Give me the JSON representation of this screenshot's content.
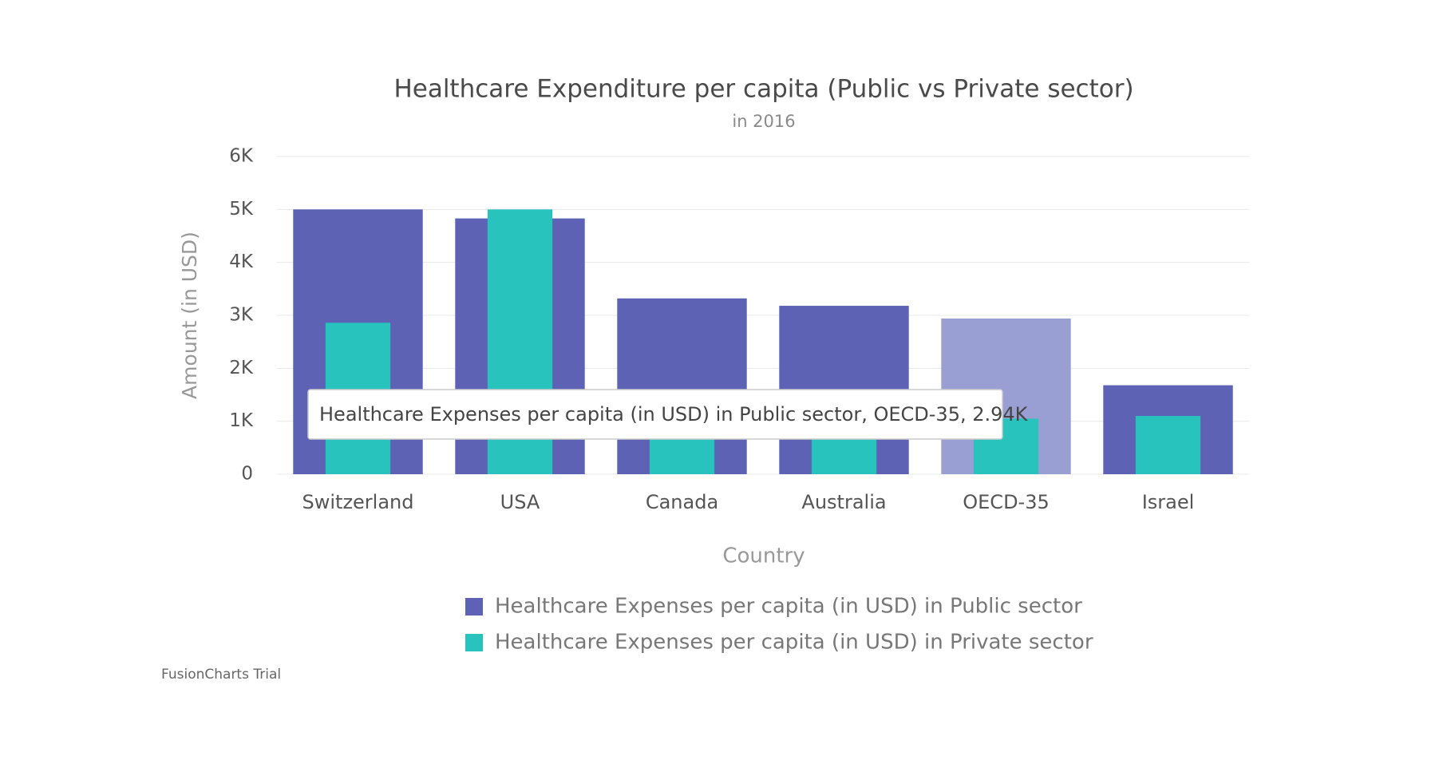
{
  "chart_data": {
    "type": "bar",
    "title": "Healthcare Expenditure per capita (Public vs Private sector)",
    "subtitle": "in 2016",
    "x_label": "Country",
    "y_label": "Amount (in USD)",
    "categories": [
      "Switzerland",
      "USA",
      "Canada",
      "Australia",
      "OECD-35",
      "Israel"
    ],
    "series": [
      {
        "name": "Healthcare Expenses per capita (in USD) in Public sector",
        "color": "#5d62b5",
        "values": [
          5000,
          4830,
          3320,
          3180,
          2940,
          1680
        ]
      },
      {
        "name": "Healthcare Expenses per capita (in USD) in Private sector",
        "color": "#29c3be",
        "values": [
          2860,
          5000,
          1430,
          1100,
          1050,
          1100
        ]
      }
    ],
    "ylim": [
      0,
      6000
    ],
    "yticks": [
      0,
      {
        "value": 1000,
        "label": "1K"
      },
      {
        "value": 2000,
        "label": "2K"
      },
      {
        "value": 3000,
        "label": "3K"
      },
      {
        "value": 4000,
        "label": "4K"
      },
      {
        "value": 5000,
        "label": "5K"
      },
      {
        "value": 6000,
        "label": "6K"
      }
    ],
    "grid": true,
    "highlight": {
      "series": 0,
      "category": 4,
      "color": "#9a9fd3"
    },
    "tooltip": "Healthcare Expenses per capita (in USD) in Public sector, OECD-35, 2.94K",
    "watermark": "FusionCharts Trial"
  }
}
